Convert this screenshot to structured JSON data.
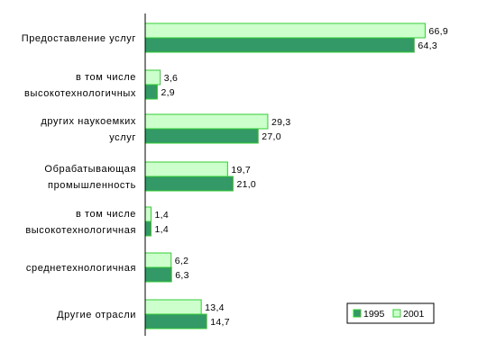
{
  "chart_data": {
    "type": "bar",
    "orientation": "horizontal",
    "categories": [
      [
        "Предоставление услуг"
      ],
      [
        "в том числе",
        "высокотехнологичных"
      ],
      [
        "других наукоемких",
        "услуг"
      ],
      [
        "Обрабатывающая",
        "промышленность"
      ],
      [
        "в том числе",
        "высокотехнологичная"
      ],
      [
        "среднетехнологичная"
      ],
      [
        "Другие отрасли"
      ]
    ],
    "series": [
      {
        "name": "1995",
        "color": "#339966",
        "values": [
          64.3,
          2.9,
          27.0,
          21.0,
          1.4,
          6.3,
          14.7
        ],
        "value_labels": [
          "64,3",
          "2,9",
          "27,0",
          "21,0",
          "1,4",
          "6,3",
          "14,7"
        ]
      },
      {
        "name": "2001",
        "color": "#ccffcc",
        "values": [
          66.9,
          3.6,
          29.3,
          19.7,
          1.4,
          6.2,
          13.4
        ],
        "value_labels": [
          "66,9",
          "3,6",
          "29,3",
          "19,7",
          "1,4",
          "6,2",
          "13,4"
        ]
      }
    ],
    "xlim": [
      0,
      70
    ],
    "grid": false,
    "legend_position": "bottom-right",
    "bar_outline_color": "#33cc33",
    "axis_color": "#000000"
  }
}
